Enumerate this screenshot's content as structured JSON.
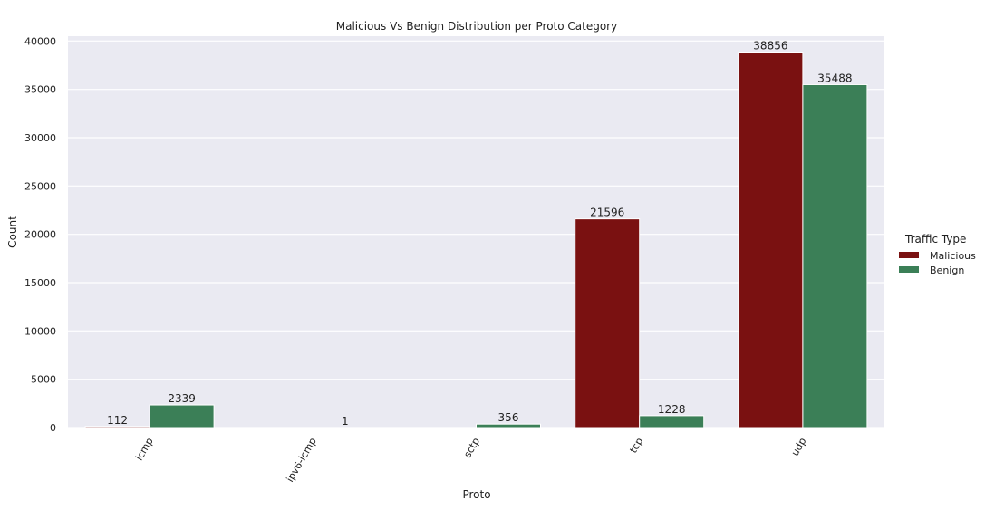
{
  "colors": {
    "malicious": "#7a1111",
    "benign": "#3b7f57",
    "plot_bg": "#eaeaf2",
    "grid": "#ffffff"
  },
  "chart_data": {
    "type": "bar",
    "title": "Malicious Vs Benign Distribution per Proto Category",
    "xlabel": "Proto",
    "ylabel": "Count",
    "categories": [
      "icmp",
      "ipv6-icmp",
      "sctp",
      "tcp",
      "udp"
    ],
    "series": [
      {
        "name": "Malicious",
        "values": [
          112,
          null,
          null,
          21596,
          38856
        ],
        "labels": [
          "112",
          "",
          "",
          "21596",
          "38856"
        ]
      },
      {
        "name": "Benign",
        "values": [
          2339,
          1,
          356,
          1228,
          35488
        ],
        "labels": [
          "2339",
          "1",
          "356",
          "1228",
          "35488"
        ]
      }
    ],
    "yticks": [
      "0",
      "5000",
      "10000",
      "15000",
      "20000",
      "25000",
      "30000",
      "35000",
      "40000"
    ],
    "ylim": [
      0,
      40500
    ],
    "grid": true,
    "legend": {
      "title": "Traffic Type",
      "placement": "right",
      "items": [
        "Malicious",
        "Benign"
      ]
    }
  }
}
